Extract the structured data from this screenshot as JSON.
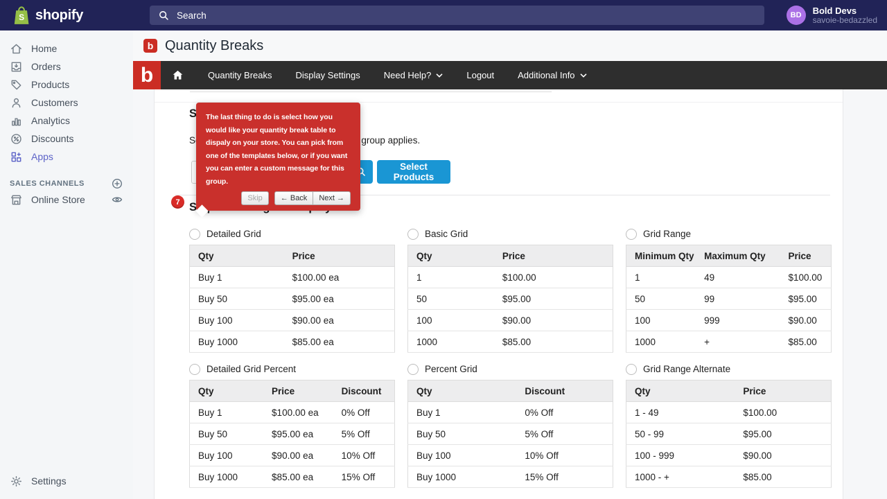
{
  "colors": {
    "topbar_bg": "#212357",
    "brand_green": "#95bf47",
    "avatar_purple": "#ab71e6",
    "sidebar_active": "#5c63c8",
    "app_red": "#cb2d24",
    "appnav_bg": "#2e2e2e",
    "tour_red": "#c9302c",
    "button_blue": "#1a96d4",
    "badge_red": "#d92b27"
  },
  "topbar": {
    "brand": "shopify",
    "search_placeholder": "Search",
    "user": {
      "initials": "BD",
      "name": "Bold Devs",
      "store": "savoie-bedazzled"
    }
  },
  "sidebar": {
    "items": [
      {
        "label": "Home",
        "icon": "home-icon",
        "active": false
      },
      {
        "label": "Orders",
        "icon": "orders-icon",
        "active": false
      },
      {
        "label": "Products",
        "icon": "products-icon",
        "active": false
      },
      {
        "label": "Customers",
        "icon": "customers-icon",
        "active": false
      },
      {
        "label": "Analytics",
        "icon": "analytics-icon",
        "active": false
      },
      {
        "label": "Discounts",
        "icon": "discounts-icon",
        "active": false
      },
      {
        "label": "Apps",
        "icon": "apps-icon",
        "active": true
      }
    ],
    "sales_channels_label": "SALES CHANNELS",
    "online_store_label": "Online Store",
    "settings_label": "Settings"
  },
  "page": {
    "title": "Quantity Breaks"
  },
  "app_nav": {
    "logo_letter": "b",
    "items": [
      {
        "label": "Quantity Breaks",
        "caret": false
      },
      {
        "label": "Display Settings",
        "caret": false
      },
      {
        "label": "Need Help?",
        "caret": true
      },
      {
        "label": "Logout",
        "caret": false
      },
      {
        "label": "Additional Info",
        "caret": true
      }
    ]
  },
  "step3": {
    "heading": "Step 3 - Select Products",
    "description": "Select which products this quantity break group applies.",
    "select_products_label": "Select Products"
  },
  "tour": {
    "text": "The last thing to do is select how you would like your quantity break table to dispaly on your store. You can pick from one of the templates below, or if you want you can enter a custom message for this group.",
    "skip_label": "Skip",
    "back_label": "← Back",
    "next_label": "Next →"
  },
  "step4": {
    "badge": "7",
    "heading": "Step 4 - Configure Display",
    "templates": [
      {
        "name": "Detailed Grid",
        "columns": [
          "Qty",
          "Price"
        ],
        "rows": [
          [
            "Buy 1",
            "$100.00 ea"
          ],
          [
            "Buy 50",
            "$95.00 ea"
          ],
          [
            "Buy 100",
            "$90.00 ea"
          ],
          [
            "Buy 1000",
            "$85.00 ea"
          ]
        ]
      },
      {
        "name": "Basic Grid",
        "columns": [
          "Qty",
          "Price"
        ],
        "rows": [
          [
            "1",
            "$100.00"
          ],
          [
            "50",
            "$95.00"
          ],
          [
            "100",
            "$90.00"
          ],
          [
            "1000",
            "$85.00"
          ]
        ]
      },
      {
        "name": "Grid Range",
        "columns": [
          "Minimum Qty",
          "Maximum Qty",
          "Price"
        ],
        "rows": [
          [
            "1",
            "49",
            "$100.00"
          ],
          [
            "50",
            "99",
            "$95.00"
          ],
          [
            "100",
            "999",
            "$90.00"
          ],
          [
            "1000",
            "+",
            "$85.00"
          ]
        ]
      },
      {
        "name": "Detailed Grid Percent",
        "columns": [
          "Qty",
          "Price",
          "Discount"
        ],
        "rows": [
          [
            "Buy 1",
            "$100.00 ea",
            "0% Off"
          ],
          [
            "Buy 50",
            "$95.00 ea",
            "5% Off"
          ],
          [
            "Buy 100",
            "$90.00 ea",
            "10% Off"
          ],
          [
            "Buy 1000",
            "$85.00 ea",
            "15% Off"
          ]
        ]
      },
      {
        "name": "Percent Grid",
        "columns": [
          "Qty",
          "Discount"
        ],
        "rows": [
          [
            "Buy 1",
            "0% Off"
          ],
          [
            "Buy 50",
            "5% Off"
          ],
          [
            "Buy 100",
            "10% Off"
          ],
          [
            "Buy 1000",
            "15% Off"
          ]
        ]
      },
      {
        "name": "Grid Range Alternate",
        "columns": [
          "Qty",
          "Price"
        ],
        "rows": [
          [
            "1 - 49",
            "$100.00"
          ],
          [
            "50 - 99",
            "$95.00"
          ],
          [
            "100 - 999",
            "$90.00"
          ],
          [
            "1000 - +",
            "$85.00"
          ]
        ]
      }
    ]
  }
}
